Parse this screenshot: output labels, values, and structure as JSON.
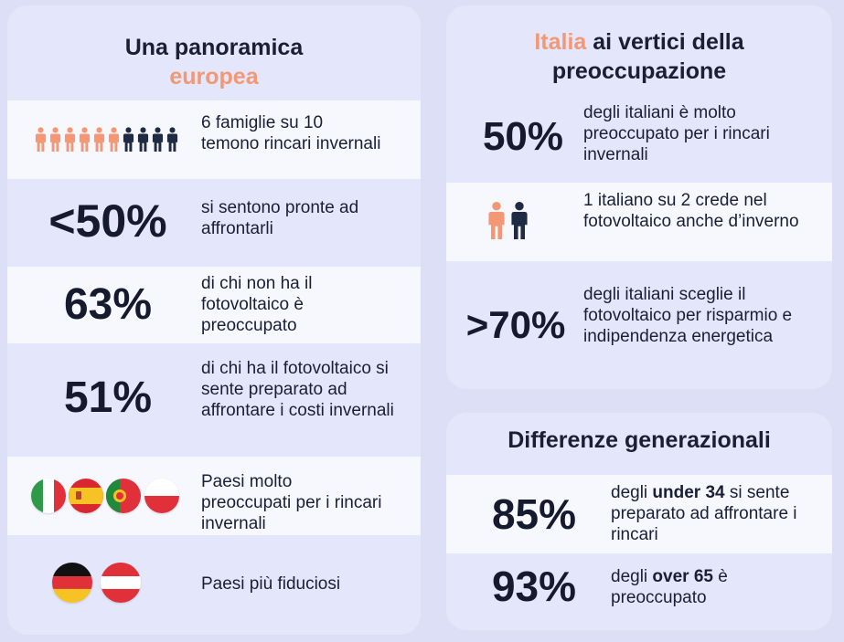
{
  "europe": {
    "title_line1": "Una panoramica",
    "title_line2": "europea",
    "rows": [
      {
        "text": "6 famiglie su 10 temono rincari invernali",
        "people_highlight": 6,
        "people_total": 10
      },
      {
        "big": "<50%",
        "text": "si sentono pronte ad affrontarli"
      },
      {
        "big": "63%",
        "text": "di chi non ha il fotovoltaico è preoccupato"
      },
      {
        "big": "51%",
        "text": "di chi ha il fotovoltaico si sente preparato ad affrontare i costi invernali"
      },
      {
        "text": "Paesi molto preoccupati per i rincari invernali",
        "flags": [
          "italy-flag-icon",
          "spain-flag-icon",
          "portugal-flag-icon",
          "poland-flag-icon"
        ]
      },
      {
        "text": "Paesi più fiduciosi",
        "flags": [
          "germany-flag-icon",
          "austria-flag-icon"
        ]
      }
    ]
  },
  "italy": {
    "title_accent": "Italia",
    "title_rest_line1": " ai vertici della",
    "title_line2": "preoccupazione",
    "rows": [
      {
        "big": "50%",
        "text": "degli italiani è molto preoccupato per i rincari invernali"
      },
      {
        "text": "1 italiano su 2 crede nel fotovoltaico anche d’inverno",
        "people_highlight": 1,
        "people_total": 2
      },
      {
        "big": ">70%",
        "text": "degli italiani sceglie il fotovoltaico per risparmio e indipendenza energetica"
      }
    ]
  },
  "generations": {
    "title": "Differenze generazionali",
    "rows": [
      {
        "big": "85%",
        "text_pre": "degli ",
        "text_bold": "under 34",
        "text_post": " si sente preparato ad affrontare i rincari"
      },
      {
        "big": "93%",
        "text_pre": "degli ",
        "text_bold": "over 65",
        "text_post": " è preoccupato"
      }
    ]
  },
  "colors": {
    "accent": "#f39775",
    "dark_figure": "#1f2a44",
    "card_bg": "#e4e7fb",
    "row_light": "#f7f7fe",
    "page_bg": "#dcdff5"
  }
}
